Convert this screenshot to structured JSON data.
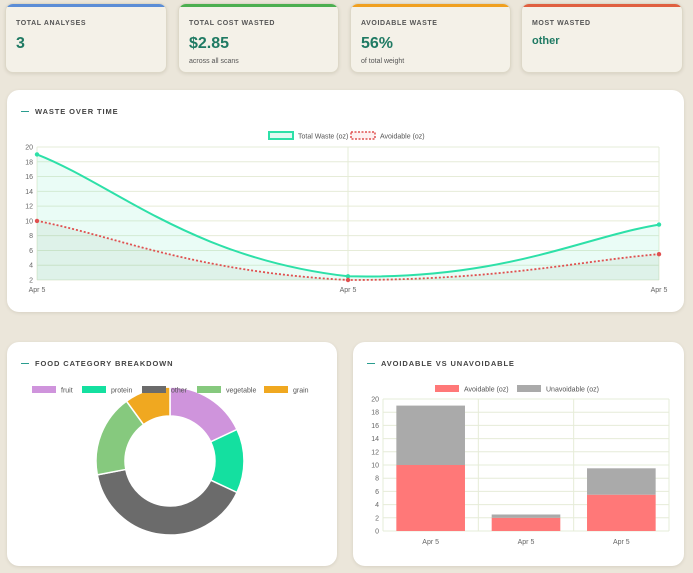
{
  "stats": [
    {
      "label": "TOTAL ANALYSES",
      "value": "3",
      "sub": "",
      "color": "#5b8dd6"
    },
    {
      "label": "TOTAL COST WASTED",
      "value": "$2.85",
      "sub": "across all scans",
      "color": "#4caf50"
    },
    {
      "label": "AVOIDABLE WASTE",
      "value": "56%",
      "sub": "of total weight",
      "color": "#f0a020"
    },
    {
      "label": "MOST WASTED",
      "value": "other",
      "sub": "",
      "color": "#e06040"
    }
  ],
  "sections": {
    "waste_over_time": "WASTE OVER TIME",
    "category": "FOOD CATEGORY BREAKDOWN",
    "avoidable": "AVOIDABLE VS UNAVOIDABLE"
  },
  "chart_data": [
    {
      "type": "line",
      "title": "WASTE OVER TIME",
      "x": [
        "Apr 5",
        "Apr 5",
        "Apr 5"
      ],
      "series": [
        {
          "name": "Total Waste (oz)",
          "values": [
            19,
            2.5,
            9.5
          ],
          "color": "#2de0a8"
        },
        {
          "name": "Avoidable (oz)",
          "values": [
            10,
            2,
            5.5
          ],
          "color": "#e05050"
        }
      ],
      "ylim": [
        2,
        20
      ],
      "yticks": [
        2,
        4,
        6,
        8,
        10,
        12,
        14,
        16,
        18,
        20
      ],
      "grid": true,
      "legend": "top"
    },
    {
      "type": "pie",
      "title": "FOOD CATEGORY BREAKDOWN",
      "categories": [
        "fruit",
        "protein",
        "other",
        "vegetable",
        "grain"
      ],
      "values": [
        18,
        14,
        40,
        18,
        10
      ],
      "colors": [
        "#cf94dc",
        "#14e0a0",
        "#6b6b6b",
        "#86c97e",
        "#f0a820"
      ],
      "legend": "top"
    },
    {
      "type": "bar",
      "title": "AVOIDABLE VS UNAVOIDABLE",
      "categories": [
        "Apr 5",
        "Apr 5",
        "Apr 5"
      ],
      "series": [
        {
          "name": "Avoidable (oz)",
          "values": [
            10,
            2,
            5.5
          ],
          "color": "#ff7878"
        },
        {
          "name": "Unavoidable (oz)",
          "values": [
            9,
            0.5,
            4
          ],
          "color": "#aaaaaa"
        }
      ],
      "stacked": true,
      "ylim": [
        0,
        20
      ],
      "yticks": [
        0,
        2,
        4,
        6,
        8,
        10,
        12,
        14,
        16,
        18,
        20
      ],
      "grid": true,
      "legend": "top"
    }
  ]
}
